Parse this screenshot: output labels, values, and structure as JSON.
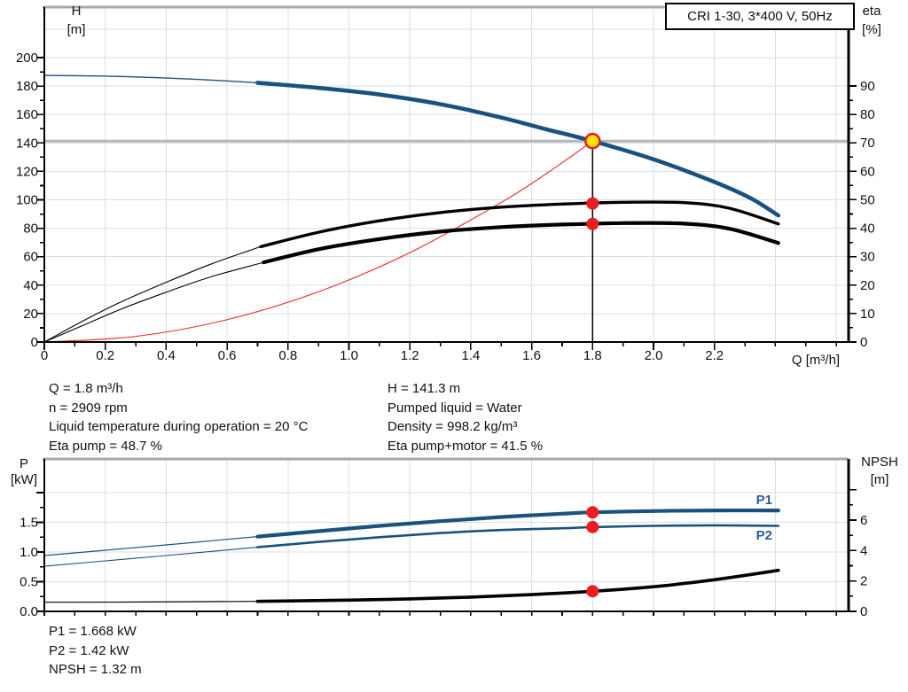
{
  "window": {
    "title_box": "CRI 1-30, 3*400 V, 50Hz"
  },
  "colors": {
    "curve_blue": "#1a527f",
    "label_blue": "#2a5b9e",
    "curve_black": "#000000",
    "system_red": "#e53935",
    "dot_red": "#ec1c24",
    "duty_yellow": "#ffe60a",
    "duty_gray_line": "#b3b7ba",
    "grid": "#dadfe4",
    "frame_gray": "#a8a8a8"
  },
  "info_top": {
    "left": [
      "Q = 1.8 m³/h",
      "n = 2909 rpm",
      "Liquid temperature during operation = 20 °C",
      "Eta pump = 48.7 %"
    ],
    "right": [
      "H = 141.3 m",
      "Pumped liquid = Water",
      "Density = 998.2 kg/m³",
      "Eta pump+motor = 41.5 %"
    ]
  },
  "info_bottom": [
    "P1 = 1.668 kW",
    "P2 = 1.42 kW",
    "NPSH = 1.32 m"
  ],
  "chart_data": [
    {
      "type": "line",
      "title": "CRI 1-30, 3*400 V, 50Hz",
      "x_axis": {
        "label": "Q [m³/h]",
        "min": 0,
        "max": 2.64,
        "tick_values": [
          0,
          0.2,
          0.4,
          0.6,
          0.8,
          1.0,
          1.2,
          1.4,
          1.6,
          1.8,
          2.0,
          2.2
        ],
        "tick_labels": [
          "0",
          "0.2",
          "0.4",
          "0.6",
          "0.8",
          "1.0",
          "1.2",
          "1.4",
          "1.6",
          "1.8",
          "2.0",
          "2.2"
        ],
        "minor_step": 0.1,
        "minor_max": 2.6,
        "grid_step": 0.2,
        "grid_max": 2.6
      },
      "left_axis": {
        "label": "H [m]",
        "min": 0,
        "max": 235,
        "tick_values": [
          0,
          20,
          40,
          60,
          80,
          100,
          120,
          140,
          160,
          180,
          200
        ],
        "tick_labels": [
          "0",
          "20",
          "40",
          "60",
          "80",
          "100",
          "120",
          "140",
          "160",
          "180",
          "200"
        ],
        "minor_step": 10,
        "minor_max": 200,
        "grid_step": 20,
        "grid_max": 220
      },
      "right_axis": {
        "label": "eta [%]",
        "min": 0,
        "max": 117,
        "tick_values": [
          0,
          10,
          20,
          30,
          40,
          50,
          60,
          70,
          80,
          90
        ],
        "tick_labels": [
          "0",
          "10",
          "20",
          "30",
          "40",
          "50",
          "60",
          "70",
          "80",
          "90"
        ],
        "minor_step": 5,
        "minor_max": 90
      },
      "series": [
        {
          "name": "system-curve",
          "axis": "left",
          "color_key": "system_red",
          "thin_width": 1.2,
          "thick_width": 0,
          "thin": [
            [
              0,
              0
            ],
            [
              0.3,
              3.9
            ],
            [
              0.6,
              15.7
            ],
            [
              0.9,
              35.3
            ],
            [
              1.2,
              62.8
            ],
            [
              1.5,
              98.1
            ],
            [
              1.65,
              118.7
            ],
            [
              1.8,
              141.3
            ]
          ],
          "thick": []
        },
        {
          "name": "eta-pump",
          "axis": "right",
          "color_key": "curve_black",
          "thin_width": 1.1,
          "thick_width": 3.4,
          "thin": [
            [
              0,
              0
            ],
            [
              0.12,
              7
            ],
            [
              0.25,
              14
            ],
            [
              0.4,
              21
            ],
            [
              0.55,
              27.5
            ],
            [
              0.71,
              33.5
            ]
          ],
          "thick": [
            [
              0.71,
              33.5
            ],
            [
              0.9,
              38.6
            ],
            [
              1.1,
              42.6
            ],
            [
              1.3,
              45.5
            ],
            [
              1.5,
              47.4
            ],
            [
              1.7,
              48.5
            ],
            [
              1.9,
              49.1
            ],
            [
              2.1,
              49.0
            ],
            [
              2.25,
              47.0
            ],
            [
              2.41,
              41.5
            ]
          ]
        },
        {
          "name": "eta-pump-motor",
          "axis": "right",
          "color_key": "curve_black",
          "thin_width": 1.1,
          "thick_width": 4.2,
          "thin": [
            [
              0,
              0
            ],
            [
              0.12,
              5.5
            ],
            [
              0.25,
              11.5
            ],
            [
              0.4,
              17.5
            ],
            [
              0.55,
              23
            ],
            [
              0.72,
              28
            ]
          ],
          "thick": [
            [
              0.72,
              28
            ],
            [
              0.9,
              32.6
            ],
            [
              1.1,
              36.2
            ],
            [
              1.3,
              38.8
            ],
            [
              1.5,
              40.4
            ],
            [
              1.7,
              41.3
            ],
            [
              1.9,
              41.8
            ],
            [
              2.1,
              41.6
            ],
            [
              2.25,
              39.8
            ],
            [
              2.41,
              34.8
            ]
          ]
        },
        {
          "name": "qh-curve",
          "axis": "left",
          "color_key": "curve_blue",
          "thin_width": 1.4,
          "thick_width": 4.6,
          "thin": [
            [
              0,
              187.5
            ],
            [
              0.2,
              187.0
            ],
            [
              0.4,
              185.6
            ],
            [
              0.55,
              184.2
            ],
            [
              0.7,
              182.3
            ]
          ],
          "thick": [
            [
              0.7,
              182.3
            ],
            [
              0.9,
              178.7
            ],
            [
              1.1,
              174.0
            ],
            [
              1.3,
              167.2
            ],
            [
              1.5,
              157.8
            ],
            [
              1.65,
              149.5
            ],
            [
              1.8,
              141.3
            ],
            [
              2.0,
              128.5
            ],
            [
              2.2,
              112.5
            ],
            [
              2.32,
              101.0
            ],
            [
              2.41,
              89.0
            ]
          ]
        }
      ],
      "duty": {
        "q": 1.8,
        "h": 141.3
      },
      "points": [
        {
          "q": 1.8,
          "value": 141.3,
          "axis": "left",
          "style": "duty",
          "name": "duty-point-qh"
        },
        {
          "q": 1.8,
          "value": 48.7,
          "axis": "right",
          "style": "red",
          "name": "op-point-eta-pump"
        },
        {
          "q": 1.8,
          "value": 41.5,
          "axis": "right",
          "style": "red",
          "name": "op-point-eta-pump-motor"
        }
      ],
      "labels": []
    },
    {
      "type": "line",
      "title": "",
      "x_axis": {
        "label": "",
        "min": 0,
        "max": 2.64,
        "tick_values": [],
        "tick_labels": [],
        "minor_step": 0.1,
        "minor_max": 2.6,
        "grid_step": 0.2,
        "grid_max": 2.6
      },
      "left_axis": {
        "label": "P [kW]",
        "min": 0,
        "max": 2.57,
        "tick_values": [
          0.0,
          0.5,
          1.0,
          1.5
        ],
        "tick_labels": [
          "0.0",
          "0.5",
          "1.0",
          "1.5"
        ],
        "minor_step": 0.25,
        "minor_max": 2.0,
        "grid_step": 0.5,
        "grid_max": 2.0,
        "extra_ticks": [
          2.0
        ]
      },
      "right_axis": {
        "label": "NPSH [m]",
        "min": 0,
        "max": 10,
        "tick_values": [
          0,
          2,
          4,
          6
        ],
        "tick_labels": [
          "0",
          "2",
          "4",
          "6"
        ],
        "minor_step": 1,
        "minor_max": 8,
        "extra_ticks": [
          8
        ]
      },
      "series": [
        {
          "name": "npsh-curve",
          "axis": "right",
          "color_key": "curve_black",
          "thin_width": 1.2,
          "thick_width": 3.6,
          "thin": [
            [
              0,
              0.6
            ],
            [
              0.35,
              0.62
            ],
            [
              0.7,
              0.66
            ]
          ],
          "thick": [
            [
              0.7,
              0.66
            ],
            [
              1.0,
              0.74
            ],
            [
              1.2,
              0.82
            ],
            [
              1.4,
              0.94
            ],
            [
              1.6,
              1.1
            ],
            [
              1.8,
              1.32
            ],
            [
              2.0,
              1.62
            ],
            [
              2.2,
              2.08
            ],
            [
              2.41,
              2.7
            ]
          ]
        },
        {
          "name": "p2-curve",
          "axis": "left",
          "color_key": "curve_blue",
          "thin_width": 1.1,
          "thick_width": 2.6,
          "thin": [
            [
              0,
              0.76
            ],
            [
              0.2,
              0.85
            ],
            [
              0.4,
              0.94
            ],
            [
              0.55,
              1.01
            ],
            [
              0.7,
              1.08
            ]
          ],
          "thick": [
            [
              0.7,
              1.08
            ],
            [
              0.9,
              1.17
            ],
            [
              1.1,
              1.25
            ],
            [
              1.3,
              1.32
            ],
            [
              1.5,
              1.37
            ],
            [
              1.7,
              1.4
            ],
            [
              1.8,
              1.42
            ],
            [
              2.0,
              1.44
            ],
            [
              2.2,
              1.45
            ],
            [
              2.41,
              1.44
            ]
          ]
        },
        {
          "name": "p1-curve",
          "axis": "left",
          "color_key": "curve_blue",
          "thin_width": 1.2,
          "thick_width": 4.2,
          "thin": [
            [
              0,
              0.94
            ],
            [
              0.2,
              1.03
            ],
            [
              0.4,
              1.12
            ],
            [
              0.55,
              1.19
            ],
            [
              0.7,
              1.26
            ]
          ],
          "thick": [
            [
              0.7,
              1.26
            ],
            [
              0.9,
              1.35
            ],
            [
              1.1,
              1.44
            ],
            [
              1.3,
              1.52
            ],
            [
              1.5,
              1.59
            ],
            [
              1.7,
              1.645
            ],
            [
              1.8,
              1.668
            ],
            [
              2.0,
              1.69
            ],
            [
              2.2,
              1.7
            ],
            [
              2.41,
              1.7
            ]
          ]
        }
      ],
      "duty": null,
      "points": [
        {
          "q": 1.8,
          "value": 1.668,
          "axis": "left",
          "style": "red",
          "name": "op-point-p1"
        },
        {
          "q": 1.8,
          "value": 1.42,
          "axis": "left",
          "style": "red",
          "name": "op-point-p2"
        },
        {
          "q": 1.8,
          "value": 1.32,
          "axis": "right",
          "style": "red",
          "name": "op-point-npsh"
        }
      ],
      "labels": [
        {
          "text": "P1",
          "q": 2.36,
          "value": 1.87,
          "axis": "left"
        },
        {
          "text": "P2",
          "q": 2.36,
          "value": 1.27,
          "axis": "left"
        }
      ]
    }
  ],
  "axis_headers": {
    "h_top": "H",
    "h_unit": "[m]",
    "eta_top": "eta",
    "eta_unit": "[%]",
    "q_label": "Q [m³/h]",
    "p_top": "P",
    "p_unit": "[kW]",
    "npsh_top": "NPSH",
    "npsh_unit": "[m]"
  }
}
